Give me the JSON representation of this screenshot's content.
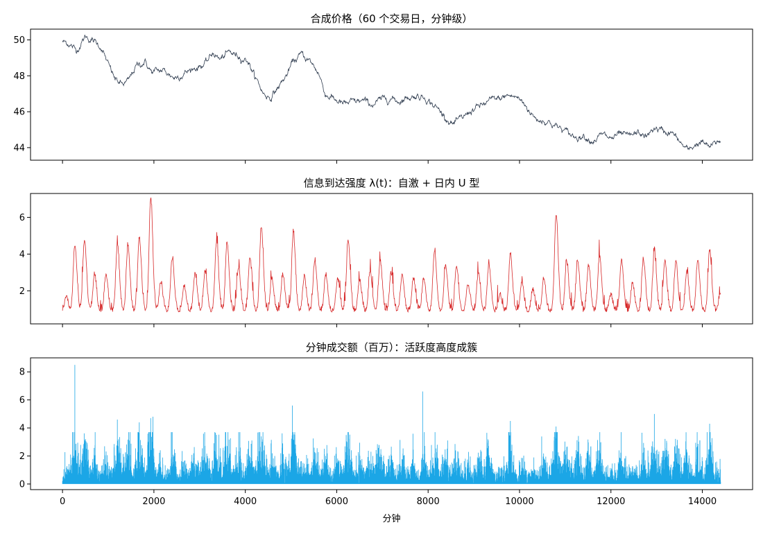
{
  "figure": {
    "xlabel": "分钟",
    "x_ticks": [
      0,
      2000,
      4000,
      6000,
      8000,
      10000,
      12000,
      14000
    ],
    "xlim": [
      -700,
      15100
    ],
    "n_minutes": 14400
  },
  "chart_data": [
    {
      "type": "line",
      "title": "合成价格（60 个交易日，分钟级）",
      "color": "#2e3b4e",
      "ylim": [
        43.3,
        50.6
      ],
      "y_ticks": [
        44,
        46,
        48,
        50
      ],
      "anchors": [
        [
          0,
          49.9
        ],
        [
          150,
          49.8
        ],
        [
          300,
          49.4
        ],
        [
          500,
          50.2
        ],
        [
          700,
          49.9
        ],
        [
          850,
          49.6
        ],
        [
          1000,
          48.6
        ],
        [
          1150,
          47.8
        ],
        [
          1300,
          47.5
        ],
        [
          1450,
          47.7
        ],
        [
          1600,
          48.5
        ],
        [
          1800,
          48.8
        ],
        [
          1950,
          48.2
        ],
        [
          2200,
          48.3
        ],
        [
          2450,
          47.9
        ],
        [
          2700,
          48.2
        ],
        [
          2950,
          48.5
        ],
        [
          3150,
          48.7
        ],
        [
          3300,
          49.3
        ],
        [
          3450,
          48.9
        ],
        [
          3650,
          49.3
        ],
        [
          3850,
          49.1
        ],
        [
          4050,
          48.9
        ],
        [
          4200,
          48.0
        ],
        [
          4400,
          47.0
        ],
        [
          4550,
          46.8
        ],
        [
          4700,
          47.3
        ],
        [
          4900,
          48.0
        ],
        [
          5050,
          48.8
        ],
        [
          5250,
          49.2
        ],
        [
          5450,
          48.7
        ],
        [
          5600,
          48.2
        ],
        [
          5750,
          47.0
        ],
        [
          5950,
          46.7
        ],
        [
          6150,
          46.4
        ],
        [
          6350,
          46.5
        ],
        [
          6550,
          46.6
        ],
        [
          6750,
          46.4
        ],
        [
          6950,
          46.6
        ],
        [
          7150,
          46.8
        ],
        [
          7350,
          46.6
        ],
        [
          7550,
          46.8
        ],
        [
          7750,
          46.9
        ],
        [
          7950,
          46.8
        ],
        [
          8150,
          46.3
        ],
        [
          8350,
          45.8
        ],
        [
          8550,
          45.3
        ],
        [
          8750,
          45.6
        ],
        [
          8950,
          46.1
        ],
        [
          9150,
          46.3
        ],
        [
          9350,
          46.6
        ],
        [
          9550,
          46.7
        ],
        [
          9750,
          46.9
        ],
        [
          9950,
          46.8
        ],
        [
          10150,
          46.3
        ],
        [
          10350,
          45.6
        ],
        [
          10600,
          45.5
        ],
        [
          10800,
          45.2
        ],
        [
          11000,
          44.9
        ],
        [
          11200,
          44.6
        ],
        [
          11400,
          44.7
        ],
        [
          11600,
          44.4
        ],
        [
          11800,
          44.7
        ],
        [
          12000,
          44.5
        ],
        [
          12200,
          44.7
        ],
        [
          12400,
          44.6
        ],
        [
          12600,
          44.8
        ],
        [
          12800,
          44.6
        ],
        [
          12950,
          45.1
        ],
        [
          13150,
          44.9
        ],
        [
          13350,
          44.8
        ],
        [
          13500,
          44.3
        ],
        [
          13700,
          43.8
        ],
        [
          13850,
          44.2
        ],
        [
          14000,
          44.3
        ],
        [
          14150,
          44.0
        ],
        [
          14400,
          44.4
        ]
      ]
    },
    {
      "type": "line",
      "title": "信息到达强度 λ(t)：自激 + 日内 U 型",
      "color": "#d62728",
      "ylim": [
        0.2,
        7.3
      ],
      "y_ticks": [
        2,
        4,
        6
      ],
      "baseline": 0.8,
      "peaks": [
        [
          80,
          1.6
        ],
        [
          270,
          4.4
        ],
        [
          480,
          4.7
        ],
        [
          700,
          2.8
        ],
        [
          950,
          2.8
        ],
        [
          1200,
          4.4
        ],
        [
          1430,
          4.4
        ],
        [
          1680,
          4.8
        ],
        [
          1930,
          7.0
        ],
        [
          2150,
          2.4
        ],
        [
          2400,
          3.7
        ],
        [
          2660,
          2.2
        ],
        [
          2900,
          2.9
        ],
        [
          3120,
          3.0
        ],
        [
          3370,
          4.6
        ],
        [
          3600,
          4.6
        ],
        [
          3850,
          3.2
        ],
        [
          4100,
          3.7
        ],
        [
          4350,
          5.4
        ],
        [
          4580,
          2.6
        ],
        [
          4820,
          2.8
        ],
        [
          5050,
          5.1
        ],
        [
          5290,
          2.7
        ],
        [
          5520,
          3.6
        ],
        [
          5760,
          2.8
        ],
        [
          6020,
          2.6
        ],
        [
          6250,
          4.7
        ],
        [
          6500,
          2.5
        ],
        [
          6730,
          3.0
        ],
        [
          6950,
          3.6
        ],
        [
          7190,
          2.9
        ],
        [
          7430,
          2.8
        ],
        [
          7680,
          2.6
        ],
        [
          7900,
          2.6
        ],
        [
          8140,
          4.1
        ],
        [
          8380,
          3.3
        ],
        [
          8620,
          3.3
        ],
        [
          8870,
          2.3
        ],
        [
          9100,
          2.9
        ],
        [
          9330,
          3.3
        ],
        [
          9570,
          1.7
        ],
        [
          9800,
          3.9
        ],
        [
          10050,
          2.4
        ],
        [
          10290,
          2.0
        ],
        [
          10530,
          2.6
        ],
        [
          10800,
          6.1
        ],
        [
          11030,
          3.5
        ],
        [
          11270,
          3.6
        ],
        [
          11510,
          3.3
        ],
        [
          11750,
          3.8
        ],
        [
          11990,
          1.7
        ],
        [
          12230,
          3.6
        ],
        [
          12470,
          2.3
        ],
        [
          12710,
          3.6
        ],
        [
          12950,
          4.1
        ],
        [
          13180,
          3.6
        ],
        [
          13420,
          3.5
        ],
        [
          13660,
          3.0
        ],
        [
          13900,
          3.6
        ],
        [
          14160,
          4.1
        ],
        [
          14390,
          1.7
        ]
      ]
    },
    {
      "type": "bar",
      "title": "分钟成交额（百万）：活跃度高度成簇",
      "color": "#1ba6e6",
      "ylim": [
        -0.4,
        9.0
      ],
      "y_ticks": [
        0,
        2,
        4,
        6,
        8
      ],
      "spikes": [
        [
          270,
          8.5
        ],
        [
          7880,
          6.6
        ],
        [
          5030,
          5.6
        ],
        [
          1930,
          4.7
        ],
        [
          1980,
          4.8
        ],
        [
          1200,
          4.6
        ],
        [
          1680,
          4.4
        ],
        [
          12950,
          5.0
        ],
        [
          9800,
          4.5
        ],
        [
          14160,
          4.3
        ],
        [
          10800,
          4.1
        ],
        [
          4350,
          3.4
        ],
        [
          3370,
          3.5
        ]
      ]
    }
  ]
}
